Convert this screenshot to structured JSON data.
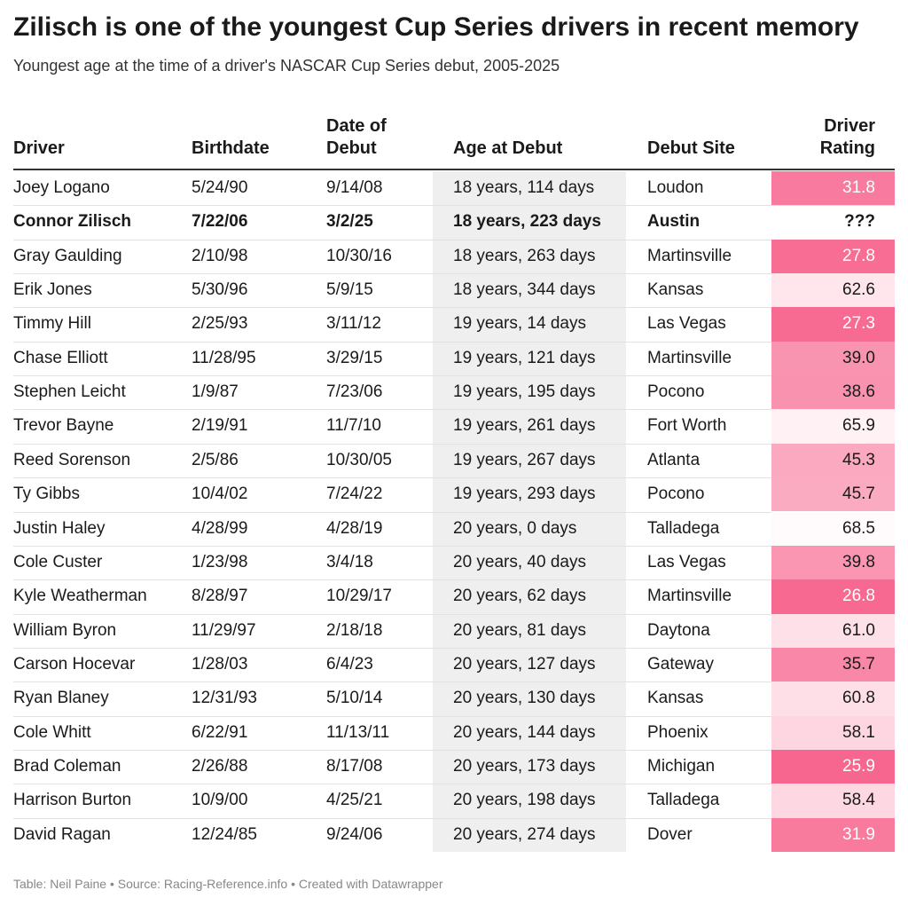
{
  "header": {
    "title": "Zilisch is one of the youngest Cup Series drivers in recent memory",
    "subtitle": "Youngest age at the time of a driver's NASCAR Cup Series debut, 2005-2025"
  },
  "table": {
    "columns": [
      "Driver",
      "Birthdate",
      "Date of Debut",
      "Age at Debut",
      "Debut Site",
      "Driver Rating"
    ],
    "bold_row": 1,
    "rows": [
      [
        "Joey Logano",
        "5/24/90",
        "9/14/08",
        "18 years, 114 days",
        "Loudon",
        "31.8"
      ],
      [
        "Connor Zilisch",
        "7/22/06",
        "3/2/25",
        "18 years, 223 days",
        "Austin",
        "???"
      ],
      [
        "Gray Gaulding",
        "2/10/98",
        "10/30/16",
        "18 years, 263 days",
        "Martinsville",
        "27.8"
      ],
      [
        "Erik Jones",
        "5/30/96",
        "5/9/15",
        "18 years, 344 days",
        "Kansas",
        "62.6"
      ],
      [
        "Timmy Hill",
        "2/25/93",
        "3/11/12",
        "19 years, 14 days",
        "Las Vegas",
        "27.3"
      ],
      [
        "Chase Elliott",
        "11/28/95",
        "3/29/15",
        "19 years, 121 days",
        "Martinsville",
        "39.0"
      ],
      [
        "Stephen Leicht",
        "1/9/87",
        "7/23/06",
        "19 years, 195 days",
        "Pocono",
        "38.6"
      ],
      [
        "Trevor Bayne",
        "2/19/91",
        "11/7/10",
        "19 years, 261 days",
        "Fort Worth",
        "65.9"
      ],
      [
        "Reed Sorenson",
        "2/5/86",
        "10/30/05",
        "19 years, 267 days",
        "Atlanta",
        "45.3"
      ],
      [
        "Ty Gibbs",
        "10/4/02",
        "7/24/22",
        "19 years, 293 days",
        "Pocono",
        "45.7"
      ],
      [
        "Justin Haley",
        "4/28/99",
        "4/28/19",
        "20 years, 0 days",
        "Talladega",
        "68.5"
      ],
      [
        "Cole Custer",
        "1/23/98",
        "3/4/18",
        "20 years, 40 days",
        "Las Vegas",
        "39.8"
      ],
      [
        "Kyle Weatherman",
        "8/28/97",
        "10/29/17",
        "20 years, 62 days",
        "Martinsville",
        "26.8"
      ],
      [
        "William Byron",
        "11/29/97",
        "2/18/18",
        "20 years, 81 days",
        "Daytona",
        "61.0"
      ],
      [
        "Carson Hocevar",
        "1/28/03",
        "6/4/23",
        "20 years, 127 days",
        "Gateway",
        "35.7"
      ],
      [
        "Ryan Blaney",
        "12/31/93",
        "5/10/14",
        "20 years, 130 days",
        "Kansas",
        "60.8"
      ],
      [
        "Cole Whitt",
        "6/22/91",
        "11/13/11",
        "20 years, 144 days",
        "Phoenix",
        "58.1"
      ],
      [
        "Brad Coleman",
        "2/26/88",
        "8/17/08",
        "20 years, 173 days",
        "Michigan",
        "25.9"
      ],
      [
        "Harrison Burton",
        "10/9/00",
        "4/25/21",
        "20 years, 198 days",
        "Talladega",
        "58.4"
      ],
      [
        "David Ragan",
        "12/24/85",
        "9/24/06",
        "20 years, 274 days",
        "Dover",
        "31.9"
      ]
    ]
  },
  "footer": "Table: Neil Paine • Source: Racing-Reference.info • Created with Datawrapper"
}
